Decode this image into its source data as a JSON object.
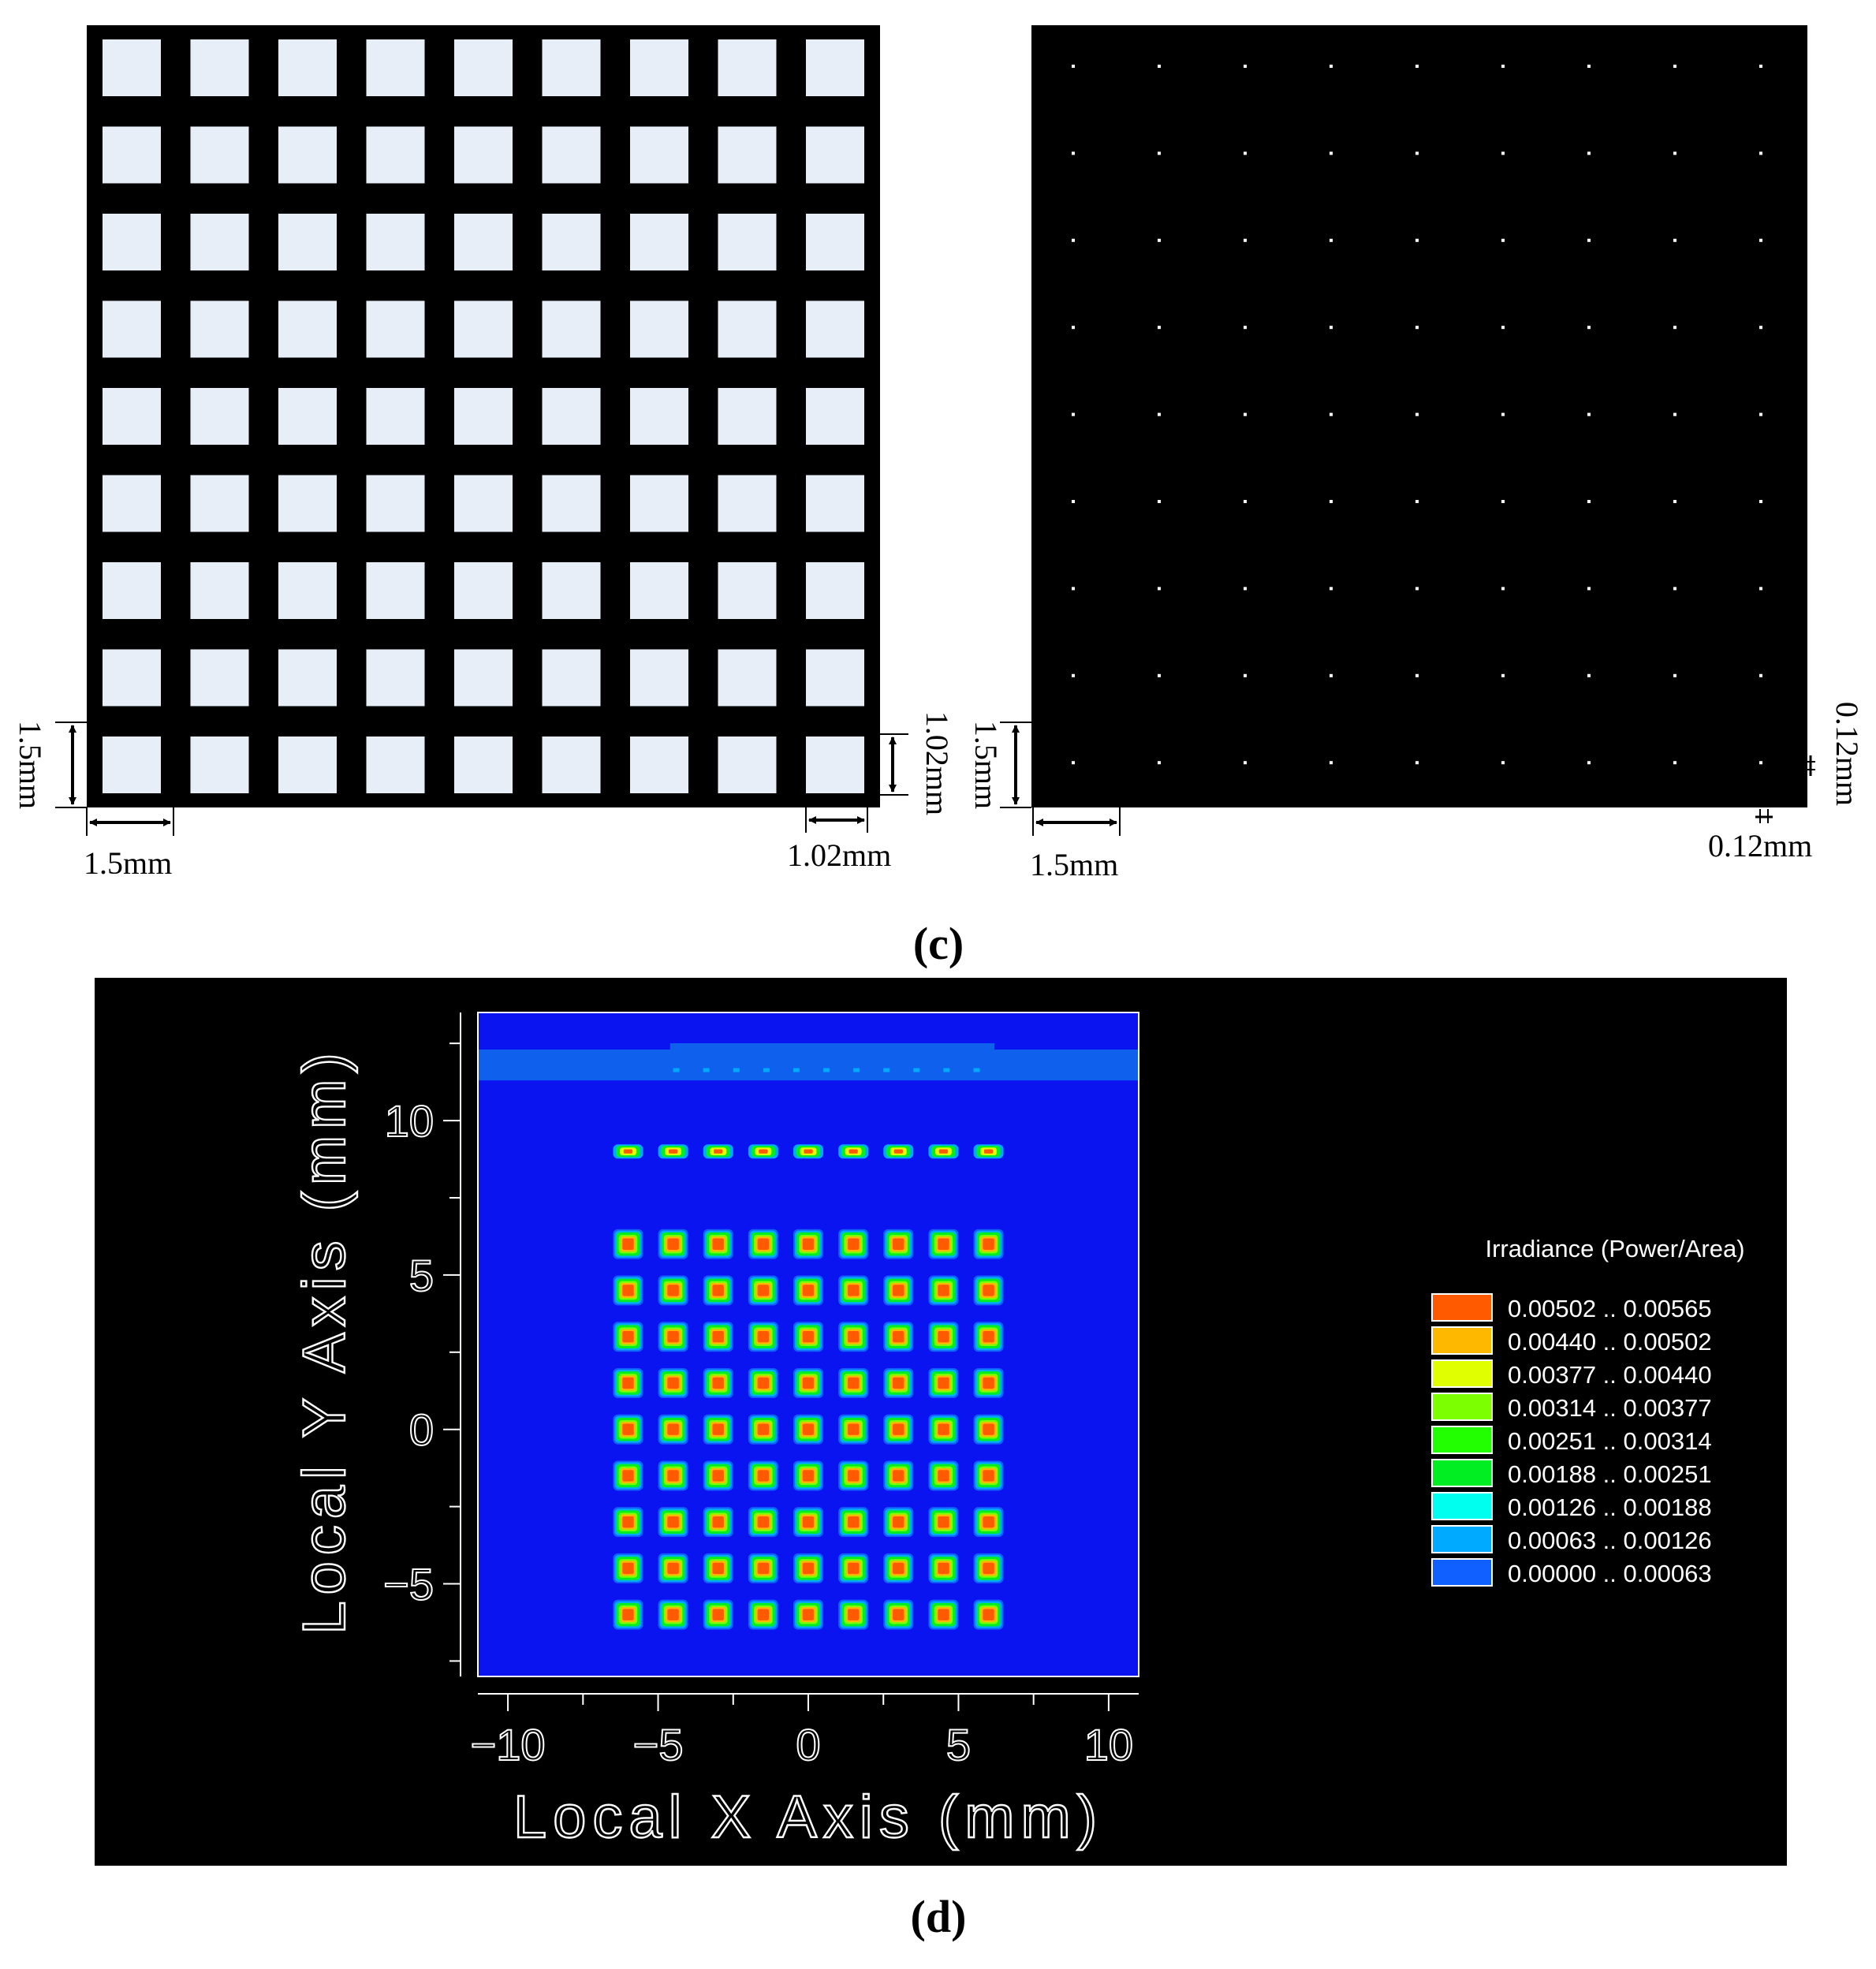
{
  "panel_c": {
    "label": "(c)",
    "left": {
      "pitch_label": "1.5mm",
      "pitch_label_vertical": "1.5mm",
      "square_label": "1.02mm",
      "square_label_vertical": "1.02mm"
    },
    "right": {
      "pitch_label": "1.5mm",
      "pitch_label_vertical": "1.5mm",
      "dot_label": "0.12mm",
      "dot_label_vertical": "0.12mm"
    }
  },
  "panel_d": {
    "label": "(d)"
  },
  "colors": {
    "square_fill": "#e8eef8",
    "plot_bg": "#0a14f0",
    "band": "#1060ee"
  },
  "chart_data": [
    {
      "type": "heatmap",
      "title": "",
      "xlabel": "Local X Axis (mm)",
      "ylabel": "Local Y Axis (mm)",
      "xlim": [
        -11,
        11
      ],
      "ylim": [
        -8,
        13.5
      ],
      "x_ticks": [
        -10,
        -5,
        0,
        5,
        10
      ],
      "y_ticks": [
        -5,
        0,
        5,
        10
      ],
      "grid": false,
      "spot_grid": {
        "x_centers": [
          -6.0,
          -4.5,
          -3.0,
          -1.5,
          0.0,
          1.5,
          3.0,
          4.5,
          6.0
        ],
        "y_centers": [
          6.0,
          4.5,
          3.0,
          1.5,
          0.0,
          -1.5,
          -3.0,
          -4.5,
          -6.0
        ],
        "pitch_mm": 1.5
      },
      "extra_row_y": 9.0,
      "band_y_range": [
        11.3,
        12.3
      ],
      "legend": {
        "title": "Irradiance (Power/Area)",
        "placement": "right",
        "entries": [
          {
            "label": "0.00502 .. 0.00565",
            "color": "#ff5a00"
          },
          {
            "label": "0.00440 .. 0.00502",
            "color": "#ffb800"
          },
          {
            "label": "0.00377 .. 0.00440",
            "color": "#e0ff00"
          },
          {
            "label": "0.00314 .. 0.00377",
            "color": "#7cff00"
          },
          {
            "label": "0.00251 .. 0.00314",
            "color": "#22ff00"
          },
          {
            "label": "0.00188 .. 0.00251",
            "color": "#00ee22"
          },
          {
            "label": "0.00126 .. 0.00188",
            "color": "#00ffee"
          },
          {
            "label": "0.00063 .. 0.00126",
            "color": "#00aaff"
          },
          {
            "label": "0.00000 .. 0.00063",
            "color": "#1060ff"
          }
        ]
      }
    }
  ]
}
